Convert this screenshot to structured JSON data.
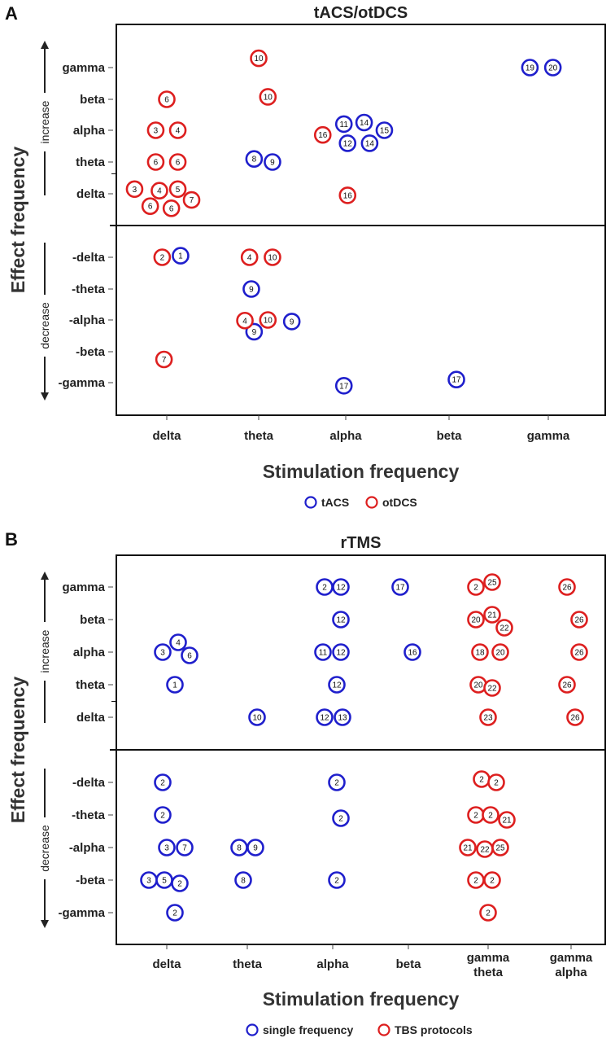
{
  "chart_data": [
    {
      "type": "scatter",
      "panel": "A",
      "title": "tACS/otDCS",
      "xlabel": "Stimulation frequency",
      "ylabel": "Effect frequency",
      "increase_label": "increase",
      "decrease_label": "decrease",
      "x_categories": [
        "delta",
        "theta",
        "alpha",
        "beta",
        "gamma"
      ],
      "y_categories": [
        "gamma",
        "beta",
        "alpha",
        "theta",
        "delta",
        "-delta",
        "-theta",
        "-alpha",
        "-beta",
        "-gamma"
      ],
      "legend": [
        {
          "label": "tACS",
          "color": "#1f1fcc"
        },
        {
          "label": "otDCS",
          "color": "#dd1f1f"
        }
      ],
      "series": [
        {
          "name": "tACS",
          "color": "#1f1fcc",
          "points": [
            {
              "x": "gamma",
              "y": "gamma",
              "dx": -0.2,
              "dy": 0.0,
              "label": "19"
            },
            {
              "x": "gamma",
              "y": "gamma",
              "dx": 0.05,
              "dy": 0.0,
              "label": "20"
            },
            {
              "x": "alpha",
              "y": "alpha",
              "dx": -0.02,
              "dy": 0.2,
              "label": "11"
            },
            {
              "x": "alpha",
              "y": "alpha",
              "dx": 0.2,
              "dy": 0.25,
              "label": "14"
            },
            {
              "x": "alpha",
              "y": "alpha",
              "dx": 0.42,
              "dy": 0.0,
              "label": "15"
            },
            {
              "x": "alpha",
              "y": "alpha",
              "dx": 0.02,
              "dy": -0.42,
              "label": "12"
            },
            {
              "x": "alpha",
              "y": "alpha",
              "dx": 0.26,
              "dy": -0.42,
              "label": "14"
            },
            {
              "x": "theta",
              "y": "theta",
              "dx": -0.05,
              "dy": 0.1,
              "label": "8"
            },
            {
              "x": "theta",
              "y": "theta",
              "dx": 0.15,
              "dy": 0.0,
              "label": "9"
            },
            {
              "x": "delta",
              "y": "-delta",
              "dx": 0.15,
              "dy": 0.05,
              "label": "1"
            },
            {
              "x": "theta",
              "y": "-theta",
              "dx": -0.08,
              "dy": 0.0,
              "label": "9"
            },
            {
              "x": "theta",
              "y": "-alpha",
              "dx": -0.05,
              "dy": -0.38,
              "label": "9"
            },
            {
              "x": "theta",
              "y": "-alpha",
              "dx": 0.36,
              "dy": -0.05,
              "label": "9"
            },
            {
              "x": "alpha",
              "y": "-gamma",
              "dx": -0.02,
              "dy": -0.1,
              "label": "17"
            },
            {
              "x": "beta",
              "y": "-gamma",
              "dx": 0.08,
              "dy": 0.1,
              "label": "17"
            }
          ]
        },
        {
          "name": "otDCS",
          "color": "#dd1f1f",
          "points": [
            {
              "x": "theta",
              "y": "gamma",
              "dx": 0.0,
              "dy": 0.3,
              "label": "10"
            },
            {
              "x": "theta",
              "y": "beta",
              "dx": 0.1,
              "dy": 0.08,
              "label": "10"
            },
            {
              "x": "delta",
              "y": "beta",
              "dx": 0.0,
              "dy": 0.0,
              "label": "6"
            },
            {
              "x": "delta",
              "y": "alpha",
              "dx": -0.12,
              "dy": 0.0,
              "label": "3"
            },
            {
              "x": "delta",
              "y": "alpha",
              "dx": 0.12,
              "dy": 0.0,
              "label": "4"
            },
            {
              "x": "alpha",
              "y": "alpha",
              "dx": -0.25,
              "dy": -0.15,
              "label": "16"
            },
            {
              "x": "delta",
              "y": "theta",
              "dx": -0.12,
              "dy": 0.0,
              "label": "6"
            },
            {
              "x": "delta",
              "y": "theta",
              "dx": 0.12,
              "dy": 0.0,
              "label": "6"
            },
            {
              "x": "delta",
              "y": "delta",
              "dx": -0.35,
              "dy": 0.15,
              "label": "3"
            },
            {
              "x": "delta",
              "y": "delta",
              "dx": -0.08,
              "dy": 0.1,
              "label": "4"
            },
            {
              "x": "delta",
              "y": "delta",
              "dx": 0.12,
              "dy": 0.15,
              "label": "5"
            },
            {
              "x": "delta",
              "y": "delta",
              "dx": 0.27,
              "dy": -0.2,
              "label": "7"
            },
            {
              "x": "delta",
              "y": "delta",
              "dx": -0.18,
              "dy": -0.4,
              "label": "6"
            },
            {
              "x": "delta",
              "y": "delta",
              "dx": 0.05,
              "dy": -0.47,
              "label": "6"
            },
            {
              "x": "alpha",
              "y": "delta",
              "dx": 0.02,
              "dy": -0.05,
              "label": "16"
            },
            {
              "x": "delta",
              "y": "-delta",
              "dx": -0.05,
              "dy": 0.0,
              "label": "2"
            },
            {
              "x": "theta",
              "y": "-delta",
              "dx": -0.1,
              "dy": 0.0,
              "label": "4"
            },
            {
              "x": "theta",
              "y": "-delta",
              "dx": 0.15,
              "dy": 0.0,
              "label": "10"
            },
            {
              "x": "theta",
              "y": "-alpha",
              "dx": -0.15,
              "dy": -0.02,
              "label": "4"
            },
            {
              "x": "theta",
              "y": "-alpha",
              "dx": 0.1,
              "dy": 0.0,
              "label": "10"
            },
            {
              "x": "delta",
              "y": "-beta",
              "dx": -0.03,
              "dy": -0.25,
              "label": "7"
            }
          ]
        }
      ]
    },
    {
      "type": "scatter",
      "panel": "B",
      "title": "rTMS",
      "xlabel": "Stimulation frequency",
      "ylabel": "Effect frequency",
      "increase_label": "increase",
      "decrease_label": "decrease",
      "x_categories": [
        "delta",
        "theta",
        "alpha",
        "beta",
        "gamma\ntheta",
        "gamma\nalpha"
      ],
      "y_categories": [
        "gamma",
        "beta",
        "alpha",
        "theta",
        "delta",
        "-delta",
        "-theta",
        "-alpha",
        "-beta",
        "-gamma"
      ],
      "legend": [
        {
          "label": "single frequency",
          "color": "#1f1fcc"
        },
        {
          "label": "TBS protocols",
          "color": "#dd1f1f"
        }
      ],
      "series": [
        {
          "name": "single frequency",
          "color": "#1f1fcc",
          "points": [
            {
              "x": 2,
              "y": "gamma",
              "dx": -0.1,
              "dy": 0.0,
              "label": "2"
            },
            {
              "x": 2,
              "y": "gamma",
              "dx": 0.1,
              "dy": 0.0,
              "label": "12"
            },
            {
              "x": 3,
              "y": "gamma",
              "dx": -0.1,
              "dy": 0.0,
              "label": "17"
            },
            {
              "x": 2,
              "y": "beta",
              "dx": 0.1,
              "dy": 0.0,
              "label": "12"
            },
            {
              "x": 0,
              "y": "alpha",
              "dx": -0.05,
              "dy": 0.0,
              "label": "3"
            },
            {
              "x": 0,
              "y": "alpha",
              "dx": 0.14,
              "dy": 0.3,
              "label": "4"
            },
            {
              "x": 0,
              "y": "alpha",
              "dx": 0.28,
              "dy": -0.1,
              "label": "6"
            },
            {
              "x": 2,
              "y": "alpha",
              "dx": -0.12,
              "dy": 0.0,
              "label": "11"
            },
            {
              "x": 2,
              "y": "alpha",
              "dx": 0.1,
              "dy": 0.0,
              "label": "12"
            },
            {
              "x": 3,
              "y": "alpha",
              "dx": 0.05,
              "dy": 0.0,
              "label": "16"
            },
            {
              "x": 0,
              "y": "theta",
              "dx": 0.1,
              "dy": 0.0,
              "label": "1"
            },
            {
              "x": 2,
              "y": "theta",
              "dx": 0.05,
              "dy": 0.0,
              "label": "12"
            },
            {
              "x": 1,
              "y": "delta",
              "dx": 0.12,
              "dy": 0.0,
              "label": "10"
            },
            {
              "x": 2,
              "y": "delta",
              "dx": -0.1,
              "dy": 0.0,
              "label": "12"
            },
            {
              "x": 2,
              "y": "delta",
              "dx": 0.12,
              "dy": 0.0,
              "label": "13"
            },
            {
              "x": 0,
              "y": "-delta",
              "dx": -0.05,
              "dy": 0.0,
              "label": "2"
            },
            {
              "x": 2,
              "y": "-delta",
              "dx": 0.05,
              "dy": 0.0,
              "label": "2"
            },
            {
              "x": 0,
              "y": "-theta",
              "dx": -0.05,
              "dy": 0.0,
              "label": "2"
            },
            {
              "x": 2,
              "y": "-theta",
              "dx": 0.1,
              "dy": -0.1,
              "label": "2"
            },
            {
              "x": 0,
              "y": "-alpha",
              "dx": 0.0,
              "dy": 0.0,
              "label": "3"
            },
            {
              "x": 0,
              "y": "-alpha",
              "dx": 0.22,
              "dy": 0.0,
              "label": "7"
            },
            {
              "x": 1,
              "y": "-alpha",
              "dx": -0.1,
              "dy": 0.0,
              "label": "8"
            },
            {
              "x": 1,
              "y": "-alpha",
              "dx": 0.1,
              "dy": 0.0,
              "label": "9"
            },
            {
              "x": 0,
              "y": "-beta",
              "dx": -0.22,
              "dy": 0.0,
              "label": "3"
            },
            {
              "x": 0,
              "y": "-beta",
              "dx": -0.03,
              "dy": 0.0,
              "label": "5"
            },
            {
              "x": 0,
              "y": "-beta",
              "dx": 0.16,
              "dy": -0.1,
              "label": "2"
            },
            {
              "x": 1,
              "y": "-beta",
              "dx": -0.05,
              "dy": 0.0,
              "label": "8"
            },
            {
              "x": 2,
              "y": "-beta",
              "dx": 0.05,
              "dy": 0.0,
              "label": "2"
            },
            {
              "x": 0,
              "y": "-gamma",
              "dx": 0.1,
              "dy": 0.0,
              "label": "2"
            }
          ]
        },
        {
          "name": "TBS protocols",
          "color": "#dd1f1f",
          "points": [
            {
              "x": 4,
              "y": "gamma",
              "dx": -0.15,
              "dy": 0.0,
              "label": "2"
            },
            {
              "x": 4,
              "y": "gamma",
              "dx": 0.05,
              "dy": 0.15,
              "label": "25"
            },
            {
              "x": 5,
              "y": "gamma",
              "dx": -0.05,
              "dy": 0.0,
              "label": "26"
            },
            {
              "x": 4,
              "y": "beta",
              "dx": -0.15,
              "dy": 0.0,
              "label": "20"
            },
            {
              "x": 4,
              "y": "beta",
              "dx": 0.05,
              "dy": 0.15,
              "label": "21"
            },
            {
              "x": 4,
              "y": "beta",
              "dx": 0.2,
              "dy": -0.25,
              "label": "22"
            },
            {
              "x": 5,
              "y": "beta",
              "dx": 0.1,
              "dy": 0.0,
              "label": "26"
            },
            {
              "x": 4,
              "y": "alpha",
              "dx": -0.1,
              "dy": 0.0,
              "label": "18"
            },
            {
              "x": 4,
              "y": "alpha",
              "dx": 0.15,
              "dy": 0.0,
              "label": "20"
            },
            {
              "x": 5,
              "y": "alpha",
              "dx": 0.1,
              "dy": 0.0,
              "label": "26"
            },
            {
              "x": 4,
              "y": "theta",
              "dx": -0.12,
              "dy": 0.0,
              "label": "20"
            },
            {
              "x": 4,
              "y": "theta",
              "dx": 0.05,
              "dy": -0.1,
              "label": "22"
            },
            {
              "x": 5,
              "y": "theta",
              "dx": -0.05,
              "dy": 0.0,
              "label": "26"
            },
            {
              "x": 4,
              "y": "delta",
              "dx": 0.0,
              "dy": 0.0,
              "label": "23"
            },
            {
              "x": 5,
              "y": "delta",
              "dx": 0.05,
              "dy": 0.0,
              "label": "26"
            },
            {
              "x": 4,
              "y": "-delta",
              "dx": -0.08,
              "dy": 0.1,
              "label": "2"
            },
            {
              "x": 4,
              "y": "-delta",
              "dx": 0.1,
              "dy": 0.0,
              "label": "2"
            },
            {
              "x": 4,
              "y": "-theta",
              "dx": -0.15,
              "dy": 0.0,
              "label": "2"
            },
            {
              "x": 4,
              "y": "-theta",
              "dx": 0.03,
              "dy": 0.0,
              "label": "2"
            },
            {
              "x": 4,
              "y": "-theta",
              "dx": 0.23,
              "dy": -0.15,
              "label": "21"
            },
            {
              "x": 4,
              "y": "-alpha",
              "dx": -0.25,
              "dy": 0.0,
              "label": "21"
            },
            {
              "x": 4,
              "y": "-alpha",
              "dx": -0.04,
              "dy": -0.05,
              "label": "22"
            },
            {
              "x": 4,
              "y": "-alpha",
              "dx": 0.15,
              "dy": 0.0,
              "label": "25"
            },
            {
              "x": 4,
              "y": "-beta",
              "dx": -0.15,
              "dy": 0.0,
              "label": "2"
            },
            {
              "x": 4,
              "y": "-beta",
              "dx": 0.05,
              "dy": 0.0,
              "label": "2"
            },
            {
              "x": 4,
              "y": "-gamma",
              "dx": 0.0,
              "dy": 0.0,
              "label": "2"
            }
          ]
        }
      ]
    }
  ]
}
